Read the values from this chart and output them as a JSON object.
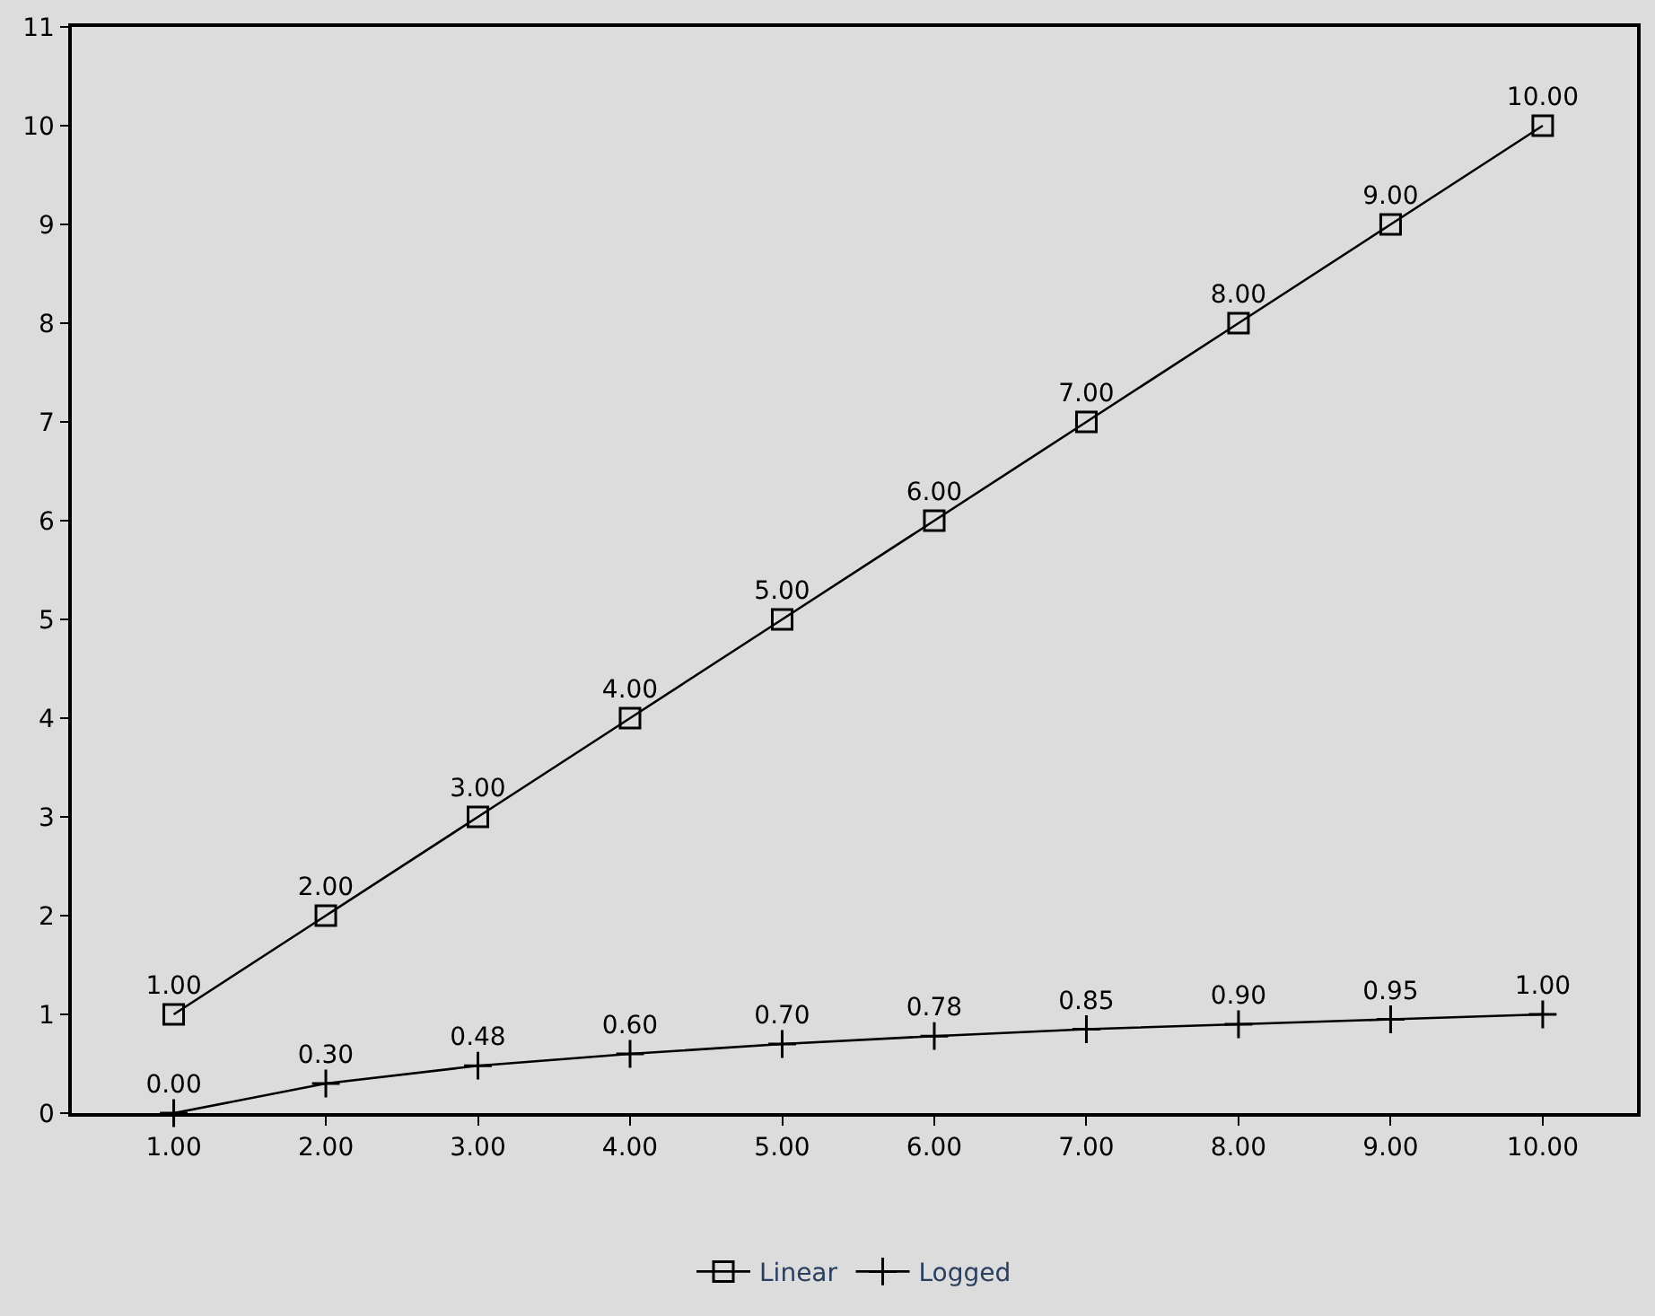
{
  "chart_data": {
    "type": "line",
    "x": [
      1,
      2,
      3,
      4,
      5,
      6,
      7,
      8,
      9,
      10
    ],
    "xlim": [
      0.33,
      10.62
    ],
    "xticks": [
      {
        "value": 1,
        "label": "1.00"
      },
      {
        "value": 2,
        "label": "2.00"
      },
      {
        "value": 3,
        "label": "3.00"
      },
      {
        "value": 4,
        "label": "4.00"
      },
      {
        "value": 5,
        "label": "5.00"
      },
      {
        "value": 6,
        "label": "6.00"
      },
      {
        "value": 7,
        "label": "7.00"
      },
      {
        "value": 8,
        "label": "8.00"
      },
      {
        "value": 9,
        "label": "9.00"
      },
      {
        "value": 10,
        "label": "10.00"
      }
    ],
    "ylim": [
      0,
      11
    ],
    "yticks": [
      0,
      1,
      2,
      3,
      4,
      5,
      6,
      7,
      8,
      9,
      10,
      11
    ],
    "grid": false,
    "legend": "bottom",
    "line_style": "solid",
    "series": [
      {
        "name": "Linear",
        "color": "#000000",
        "marker": "square",
        "values": [
          1,
          2,
          3,
          4,
          5,
          6,
          7,
          8,
          9,
          10
        ],
        "value_labels": [
          "1.00",
          "2.00",
          "3.00",
          "4.00",
          "5.00",
          "6.00",
          "7.00",
          "8.00",
          "9.00",
          "10.00"
        ]
      },
      {
        "name": "Logged",
        "color": "#000000",
        "marker": "cross",
        "values": [
          0,
          0.3,
          0.48,
          0.6,
          0.7,
          0.78,
          0.85,
          0.9,
          0.95,
          1.0
        ],
        "value_labels": [
          "0.00",
          "0.30",
          "0.48",
          "0.60",
          "0.70",
          "0.78",
          "0.85",
          "0.90",
          "0.95",
          "1.00"
        ]
      }
    ]
  }
}
